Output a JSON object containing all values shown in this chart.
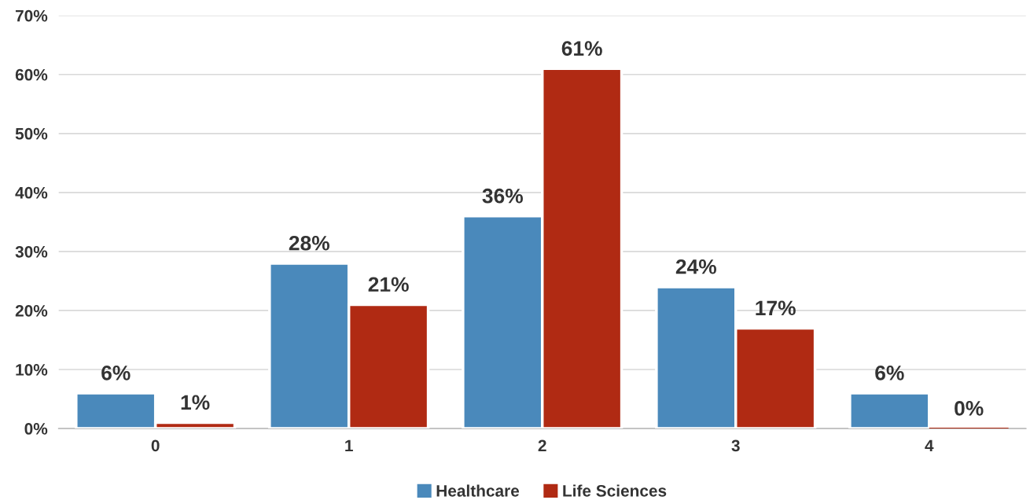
{
  "chart_data": {
    "type": "bar",
    "categories": [
      "0",
      "1",
      "2",
      "3",
      "4"
    ],
    "series": [
      {
        "name": "Healthcare",
        "color": "#4a89bb",
        "values": [
          6,
          28,
          36,
          24,
          6
        ],
        "value_labels": [
          "6%",
          "28%",
          "36%",
          "24%",
          "6%"
        ]
      },
      {
        "name": "Life Sciences",
        "color": "#b02a13",
        "values": [
          1,
          21,
          61,
          17,
          0
        ],
        "value_labels": [
          "1%",
          "21%",
          "61%",
          "17%",
          "0%"
        ]
      }
    ],
    "ylim": [
      0,
      70
    ],
    "yticks": [
      {
        "value": 0,
        "label": "0%"
      },
      {
        "value": 10,
        "label": "10%"
      },
      {
        "value": 20,
        "label": "20%"
      },
      {
        "value": 30,
        "label": "30%"
      },
      {
        "value": 40,
        "label": "40%"
      },
      {
        "value": 50,
        "label": "50%"
      },
      {
        "value": 60,
        "label": "60%"
      },
      {
        "value": 70,
        "label": "70%"
      }
    ],
    "grid": "y",
    "legend": "bottom"
  }
}
